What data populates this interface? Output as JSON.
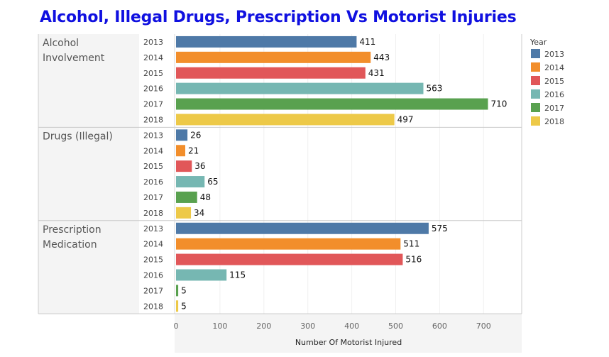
{
  "title": "Alcohol, Illegal Drugs, Prescription Vs Motorist Injuries",
  "legend": {
    "title": "Year",
    "items": [
      {
        "label": "2013",
        "color": "#4e79a7"
      },
      {
        "label": "2014",
        "color": "#f28e2b"
      },
      {
        "label": "2015",
        "color": "#e15759"
      },
      {
        "label": "2016",
        "color": "#76b7b2"
      },
      {
        "label": "2017",
        "color": "#59a14f"
      },
      {
        "label": "2018",
        "color": "#edc948"
      }
    ]
  },
  "chart_data": {
    "type": "bar",
    "orientation": "horizontal",
    "title": "Alcohol, Illegal Drugs, Prescription Vs Motorist Injuries",
    "xlabel": "Number Of Motorist Injured",
    "xlim": [
      0,
      790
    ],
    "xticks": [
      0,
      100,
      200,
      300,
      400,
      500,
      600,
      700
    ],
    "grid": true,
    "legend_position": "right",
    "groups": [
      {
        "name_lines": [
          "Alcohol",
          "Involvement"
        ],
        "bars": [
          {
            "year": "2013",
            "value": 411
          },
          {
            "year": "2014",
            "value": 443
          },
          {
            "year": "2015",
            "value": 431
          },
          {
            "year": "2016",
            "value": 563
          },
          {
            "year": "2017",
            "value": 710
          },
          {
            "year": "2018",
            "value": 497
          }
        ]
      },
      {
        "name_lines": [
          "Drugs (Illegal)"
        ],
        "bars": [
          {
            "year": "2013",
            "value": 26
          },
          {
            "year": "2014",
            "value": 21
          },
          {
            "year": "2015",
            "value": 36
          },
          {
            "year": "2016",
            "value": 65
          },
          {
            "year": "2017",
            "value": 48
          },
          {
            "year": "2018",
            "value": 34
          }
        ]
      },
      {
        "name_lines": [
          "Prescription",
          "Medication"
        ],
        "bars": [
          {
            "year": "2013",
            "value": 575
          },
          {
            "year": "2014",
            "value": 511
          },
          {
            "year": "2015",
            "value": 516
          },
          {
            "year": "2016",
            "value": 115
          },
          {
            "year": "2017",
            "value": 5
          },
          {
            "year": "2018",
            "value": 5
          }
        ]
      }
    ]
  }
}
